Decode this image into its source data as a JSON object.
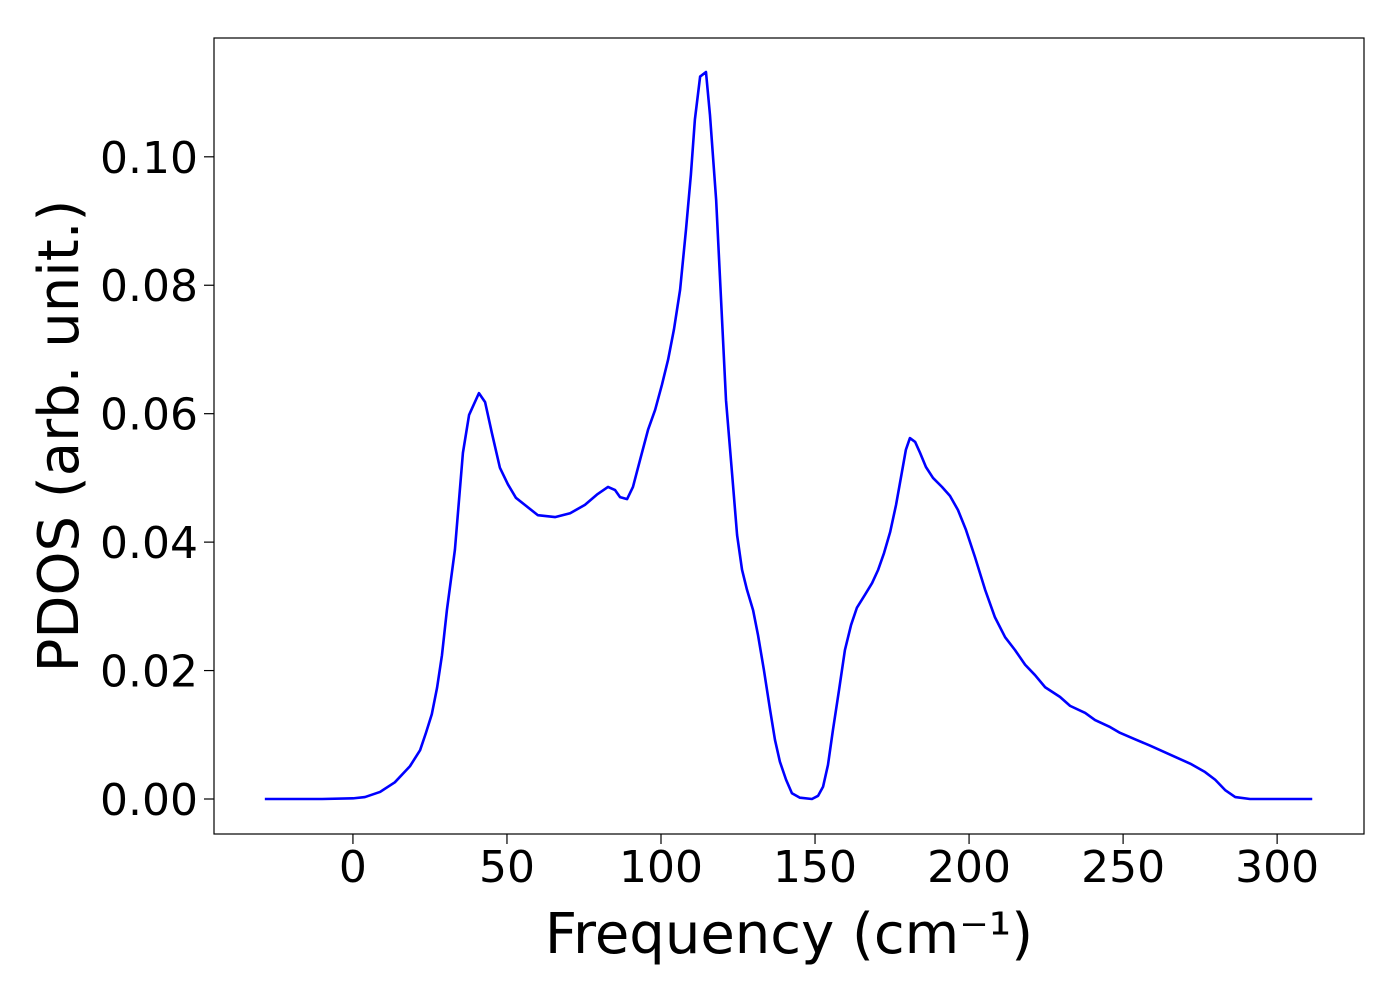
{
  "chart_data": {
    "type": "line",
    "xlabel": "Frequency (cm⁻¹)",
    "ylabel": "PDOS (arb. unit.)",
    "xlim": [
      -45.1,
      328.2
    ],
    "ylim": [
      -0.00545,
      0.1185
    ],
    "xticks": [
      0,
      50,
      100,
      150,
      200,
      250,
      300
    ],
    "yticks": [
      {
        "value": 0,
        "label": "0.00"
      },
      {
        "value": 0.02,
        "label": "0.02"
      },
      {
        "value": 0.04,
        "label": "0.04"
      },
      {
        "value": 0.06,
        "label": "0.06"
      },
      {
        "value": 0.08,
        "label": "0.08"
      },
      {
        "value": 0.1,
        "label": "0.10"
      }
    ],
    "grid": false,
    "x": [
      -28.6,
      -10,
      0,
      3.9,
      8.8,
      13.6,
      18.5,
      21.8,
      23.7,
      25.6,
      27.3,
      28.9,
      30.5,
      33.1,
      35.7,
      37.7,
      40.9,
      42.9,
      45.1,
      47.7,
      50.3,
      52.9,
      55.8,
      60,
      65.6,
      70.5,
      75.3,
      79.2,
      82.8,
      85.1,
      86.7,
      89,
      90.9,
      93.2,
      95.8,
      98.1,
      100.3,
      102.3,
      104.2,
      106.2,
      108.1,
      109.7,
      111,
      112.7,
      114.6,
      115.9,
      117.9,
      119.5,
      121.1,
      123.1,
      124.7,
      126.3,
      127.9,
      129.9,
      131.5,
      133.4,
      135.4,
      137,
      138.6,
      140.6,
      142.5,
      145.1,
      149,
      151,
      152.6,
      154.2,
      155.8,
      157.8,
      159.7,
      161.7,
      163.6,
      166.2,
      168.5,
      170.5,
      172.4,
      174.4,
      176.3,
      178.2,
      179.5,
      180.8,
      182.5,
      184.1,
      186,
      188.3,
      191.2,
      193.8,
      196.4,
      199,
      201.9,
      205.2,
      208.4,
      211.7,
      214.9,
      218.2,
      221.4,
      224.7,
      229.5,
      232.8,
      237.7,
      240.9,
      245.8,
      249,
      253.9,
      258.8,
      265.3,
      271.8,
      276.6,
      279.9,
      283.1,
      286.4,
      291.2,
      311.4
    ],
    "series": [
      {
        "name": "PDOS",
        "color": "#0000ff",
        "values": [
          0,
          0,
          0.0001,
          0.0003,
          0.0011,
          0.0026,
          0.0051,
          0.0076,
          0.0103,
          0.0132,
          0.0173,
          0.0224,
          0.0294,
          0.0388,
          0.0539,
          0.0598,
          0.0632,
          0.0618,
          0.057,
          0.0516,
          0.049,
          0.0469,
          0.0458,
          0.0442,
          0.0439,
          0.0445,
          0.0458,
          0.0474,
          0.0486,
          0.0481,
          0.047,
          0.0467,
          0.0486,
          0.0528,
          0.0575,
          0.0606,
          0.0645,
          0.0684,
          0.0731,
          0.0793,
          0.0886,
          0.0972,
          0.1058,
          0.1125,
          0.1132,
          0.1065,
          0.0933,
          0.0777,
          0.0621,
          0.0505,
          0.0411,
          0.0357,
          0.0326,
          0.0294,
          0.0255,
          0.0201,
          0.0139,
          0.0092,
          0.0058,
          0.003,
          0.0009,
          0.0002,
          0,
          0.0005,
          0.0019,
          0.0053,
          0.0107,
          0.017,
          0.0232,
          0.0271,
          0.0298,
          0.0318,
          0.0336,
          0.0357,
          0.0383,
          0.0416,
          0.0458,
          0.0509,
          0.0544,
          0.0562,
          0.0556,
          0.0539,
          0.0517,
          0.05,
          0.0486,
          0.0472,
          0.045,
          0.0419,
          0.0377,
          0.0326,
          0.0283,
          0.0252,
          0.0232,
          0.0209,
          0.0193,
          0.0174,
          0.0159,
          0.0145,
          0.0134,
          0.0123,
          0.0112,
          0.0103,
          0.0093,
          0.0083,
          0.0069,
          0.0055,
          0.0042,
          0.003,
          0.0014,
          0.0003,
          0,
          0
        ]
      }
    ]
  }
}
